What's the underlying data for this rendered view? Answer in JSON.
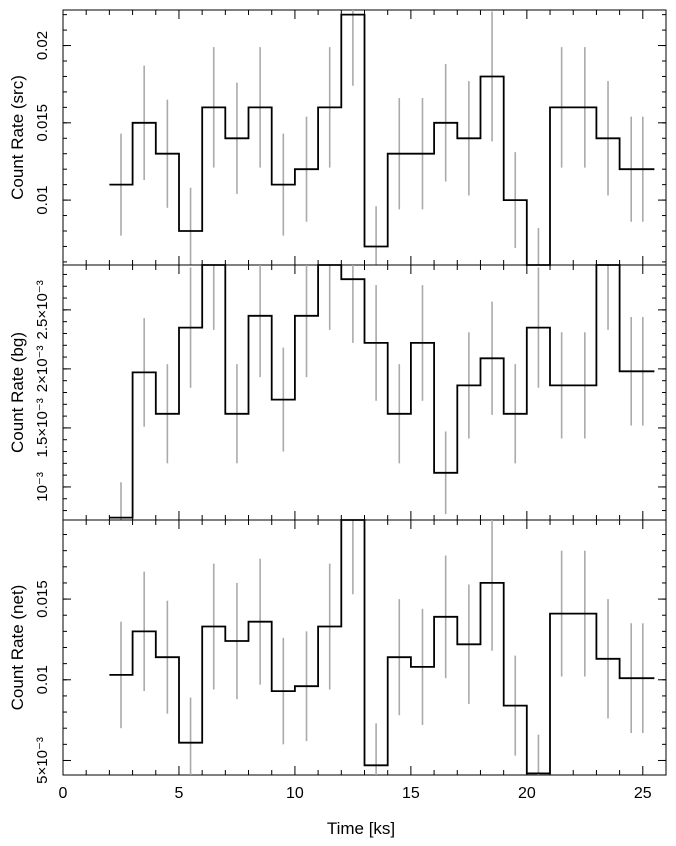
{
  "chart_data": [
    {
      "type": "line",
      "step": true,
      "ylabel": "Count Rate (src)",
      "ylim": [
        0.0058,
        0.0223
      ],
      "yticks": [
        {
          "v": 0.01,
          "label": "0.01"
        },
        {
          "v": 0.015,
          "label": "0.015"
        },
        {
          "v": 0.02,
          "label": "0.02"
        }
      ],
      "x": [
        2.5,
        3.5,
        4.5,
        5.5,
        6.5,
        7.5,
        8.5,
        9.5,
        10.5,
        11.5,
        12.5,
        13.5,
        14.5,
        15.5,
        16.5,
        17.5,
        18.5,
        19.5,
        20.5,
        21.5,
        22.5,
        23.5,
        24.5,
        25.0
      ],
      "values": [
        0.011,
        0.015,
        0.013,
        0.008,
        0.016,
        0.014,
        0.016,
        0.011,
        0.012,
        0.016,
        0.022,
        0.007,
        0.013,
        0.013,
        0.015,
        0.014,
        0.018,
        0.01,
        0.0058,
        0.016,
        0.016,
        0.014,
        0.012,
        0.012
      ],
      "errors": [
        0.0033,
        0.0037,
        0.0035,
        0.0028,
        0.0039,
        0.0036,
        0.0039,
        0.0033,
        0.0034,
        0.0039,
        0.0046,
        0.0026,
        0.0036,
        0.0036,
        0.0038,
        0.0037,
        0.0042,
        0.0031,
        0.0024,
        0.0039,
        0.0039,
        0.0037,
        0.0034,
        0.0034
      ]
    },
    {
      "type": "line",
      "step": true,
      "ylabel": "Count Rate (bg)",
      "ylim": [
        0.00072,
        0.00288
      ],
      "yticks": [
        {
          "v": 0.001,
          "label": "10⁻³"
        },
        {
          "v": 0.0015,
          "label": "1.5×10⁻³"
        },
        {
          "v": 0.002,
          "label": "2×10⁻³"
        },
        {
          "v": 0.0025,
          "label": "2.5×10⁻³"
        }
      ],
      "x": [
        2.5,
        3.5,
        4.5,
        5.5,
        6.5,
        7.5,
        8.5,
        9.5,
        10.5,
        11.5,
        12.5,
        13.5,
        14.5,
        15.5,
        16.5,
        17.5,
        18.5,
        19.5,
        20.5,
        21.5,
        22.5,
        23.5,
        24.5,
        25.0
      ],
      "values": [
        0.00074,
        0.00197,
        0.00162,
        0.00235,
        0.00288,
        0.00162,
        0.00245,
        0.00174,
        0.00245,
        0.00288,
        0.00276,
        0.00222,
        0.00162,
        0.00222,
        0.00112,
        0.00186,
        0.00209,
        0.00162,
        0.00235,
        0.00186,
        0.00186,
        0.00288,
        0.00198,
        0.00198
      ],
      "errors": [
        0.0003,
        0.00046,
        0.00042,
        0.00051,
        0.00055,
        0.00042,
        0.00052,
        0.00044,
        0.00052,
        0.00055,
        0.00054,
        0.00049,
        0.00042,
        0.00049,
        0.00035,
        0.00045,
        0.00048,
        0.00042,
        0.00051,
        0.00045,
        0.00045,
        0.00055,
        0.00046,
        0.00046
      ]
    },
    {
      "type": "line",
      "step": true,
      "ylabel": "Count Rate (net)",
      "xlabel": "Time [ks]",
      "ylim": [
        0.0041,
        0.0199
      ],
      "yticks": [
        {
          "v": 0.005,
          "label": "5×10⁻³"
        },
        {
          "v": 0.01,
          "label": "0.01"
        },
        {
          "v": 0.015,
          "label": "0.015"
        }
      ],
      "x": [
        2.5,
        3.5,
        4.5,
        5.5,
        6.5,
        7.5,
        8.5,
        9.5,
        10.5,
        11.5,
        12.5,
        13.5,
        14.5,
        15.5,
        16.5,
        17.5,
        18.5,
        19.5,
        20.5,
        21.5,
        22.5,
        23.5,
        24.5,
        25.0
      ],
      "values": [
        0.0103,
        0.013,
        0.0114,
        0.0061,
        0.0133,
        0.0124,
        0.0136,
        0.0093,
        0.0096,
        0.0133,
        0.0199,
        0.0047,
        0.0114,
        0.0108,
        0.0139,
        0.0122,
        0.016,
        0.0084,
        0.0042,
        0.0141,
        0.0141,
        0.0113,
        0.0101,
        0.0101
      ],
      "errors": [
        0.0033,
        0.0037,
        0.0035,
        0.0028,
        0.0039,
        0.0036,
        0.0039,
        0.0033,
        0.0034,
        0.0039,
        0.0046,
        0.0026,
        0.0036,
        0.0036,
        0.0038,
        0.0037,
        0.0042,
        0.0031,
        0.0024,
        0.0039,
        0.0039,
        0.0037,
        0.0034,
        0.0034
      ]
    }
  ],
  "x_axis": {
    "label": "Time [ks]",
    "lim": [
      0,
      26
    ],
    "ticks": [
      {
        "v": 0,
        "label": "0"
      },
      {
        "v": 5,
        "label": "5"
      },
      {
        "v": 10,
        "label": "10"
      },
      {
        "v": 15,
        "label": "15"
      },
      {
        "v": 20,
        "label": "20"
      },
      {
        "v": 25,
        "label": "25"
      }
    ],
    "minor_step": 1,
    "bin_width": 1.0,
    "start": 2.0
  },
  "colors": {
    "line": "#000000",
    "errorbar": "#aaaaaa",
    "background": "#ffffff"
  }
}
